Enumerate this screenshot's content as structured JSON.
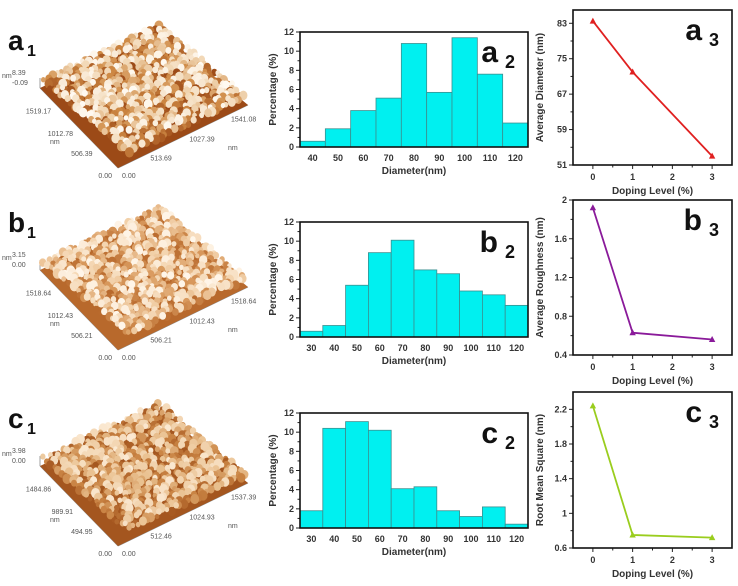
{
  "figure": {
    "rows": [
      {
        "afm": {
          "label": "a",
          "sub": "1",
          "z_top": "8.39",
          "z_bottom": "-0.09",
          "z_unit": "nm",
          "left_ticks": [
            "1519.17",
            "1012.78",
            "506.39"
          ],
          "left_unit": "nm",
          "right_ticks": [
            "1541.08",
            "1027.39",
            "513.69"
          ],
          "right_unit": "nm",
          "origin_left": "0.00",
          "origin_right": "0.00",
          "palette": [
            "#5a1e08",
            "#9c4a17",
            "#cf8a45",
            "#f1d6b3",
            "#fffaf2"
          ]
        }
      },
      {
        "afm": {
          "label": "b",
          "sub": "1",
          "z_top": "3.15",
          "z_bottom": "0.00",
          "z_unit": "nm",
          "left_ticks": [
            "1518.64",
            "1012.43",
            "506.21"
          ],
          "left_unit": "nm",
          "right_ticks": [
            "1518.64",
            "1012.43",
            "506.21"
          ],
          "right_unit": "nm",
          "origin_left": "0.00",
          "origin_right": "0.00",
          "palette": [
            "#7a3a12",
            "#b8692c",
            "#d99a5e",
            "#f3d3ad",
            "#fff6ea"
          ]
        }
      },
      {
        "afm": {
          "label": "c",
          "sub": "1",
          "z_top": "3.98",
          "z_bottom": "0.00",
          "z_unit": "nm",
          "left_ticks": [
            "1484.86",
            "989.91",
            "494.95"
          ],
          "left_unit": "nm",
          "right_ticks": [
            "1537.39",
            "1024.93",
            "512.46"
          ],
          "right_unit": "nm",
          "origin_left": "0.00",
          "origin_right": "0.00",
          "palette": [
            "#6a2c0c",
            "#a4561f",
            "#c98343",
            "#e9c08f",
            "#fbe9d2"
          ]
        }
      }
    ]
  },
  "chart_data": [
    {
      "id": "a2",
      "type": "bar",
      "panel_label": "a",
      "panel_sub": "2",
      "title": "",
      "xlabel": "Diameter(nm)",
      "ylabel": "Percentage (%)",
      "categories": [
        "40",
        "50",
        "60",
        "70",
        "80",
        "90",
        "100",
        "110",
        "120"
      ],
      "values": [
        0.6,
        1.9,
        3.8,
        5.1,
        10.8,
        5.7,
        11.4,
        7.6,
        2.5
      ],
      "ylim": [
        0,
        12
      ],
      "yticks": [
        "0",
        "2",
        "4",
        "6",
        "8",
        "10",
        "12"
      ],
      "bar_color": "#00f0f0",
      "grid": false
    },
    {
      "id": "b2",
      "type": "bar",
      "panel_label": "b",
      "panel_sub": "2",
      "title": "",
      "xlabel": "Diameter(nm)",
      "ylabel": "Percentage (%)",
      "categories": [
        "30",
        "40",
        "50",
        "60",
        "70",
        "80",
        "90",
        "100",
        "110",
        "120"
      ],
      "values": [
        0.6,
        1.2,
        5.4,
        8.8,
        10.1,
        7.0,
        6.6,
        4.8,
        4.4,
        3.3
      ],
      "ylim": [
        0,
        12
      ],
      "yticks": [
        "0",
        "2",
        "4",
        "6",
        "8",
        "10",
        "12"
      ],
      "bar_color": "#00f0f0",
      "grid": false
    },
    {
      "id": "c2",
      "type": "bar",
      "panel_label": "c",
      "panel_sub": "2",
      "title": "",
      "xlabel": "Diameter(nm)",
      "ylabel": "Percentage (%)",
      "categories": [
        "30",
        "40",
        "50",
        "60",
        "70",
        "80",
        "90",
        "100",
        "110",
        "120"
      ],
      "values": [
        1.8,
        10.4,
        11.1,
        10.2,
        4.1,
        4.3,
        1.8,
        1.2,
        2.2,
        0.4
      ],
      "ylim": [
        0,
        12
      ],
      "yticks": [
        "0",
        "2",
        "4",
        "6",
        "8",
        "10",
        "12"
      ],
      "bar_color": "#00f0f0",
      "grid": false
    },
    {
      "id": "a3",
      "type": "line",
      "panel_label": "a",
      "panel_sub": "3",
      "title": "",
      "xlabel": "Doping Level (%)",
      "ylabel": "Average Diameter (nm)",
      "x": [
        0,
        1,
        3
      ],
      "values": [
        83.5,
        72,
        53
      ],
      "xlim": [
        -0.5,
        3.5
      ],
      "xticks": [
        "0",
        "1",
        "2",
        "3"
      ],
      "ylim": [
        51,
        86
      ],
      "yticks": [
        "51",
        "59",
        "67",
        "75",
        "83"
      ],
      "line_color": "#e02020",
      "marker": "triangle",
      "grid": false
    },
    {
      "id": "b3",
      "type": "line",
      "panel_label": "b",
      "panel_sub": "3",
      "title": "",
      "xlabel": "Doping Level (%)",
      "ylabel": "Average Roughness (nm)",
      "x": [
        0,
        1,
        3
      ],
      "values": [
        1.92,
        0.63,
        0.56
      ],
      "xlim": [
        -0.5,
        3.5
      ],
      "xticks": [
        "0",
        "1",
        "2",
        "3"
      ],
      "ylim": [
        0.4,
        2.0
      ],
      "yticks": [
        "0.4",
        "0.8",
        "1.2",
        "1.6",
        "2"
      ],
      "line_color": "#8a1a9a",
      "marker": "triangle",
      "grid": false
    },
    {
      "id": "c3",
      "type": "line",
      "panel_label": "c",
      "panel_sub": "3",
      "title": "",
      "xlabel": "Doping Level (%)",
      "ylabel": "Root Mean Square (nm)",
      "x": [
        0,
        1,
        3
      ],
      "values": [
        2.24,
        0.75,
        0.72
      ],
      "xlim": [
        -0.5,
        3.5
      ],
      "xticks": [
        "0",
        "1",
        "2",
        "3"
      ],
      "ylim": [
        0.6,
        2.4
      ],
      "yticks": [
        "0.6",
        "1",
        "1.4",
        "1.8",
        "2.2"
      ],
      "line_color": "#9acd1e",
      "marker": "triangle",
      "grid": false
    }
  ]
}
